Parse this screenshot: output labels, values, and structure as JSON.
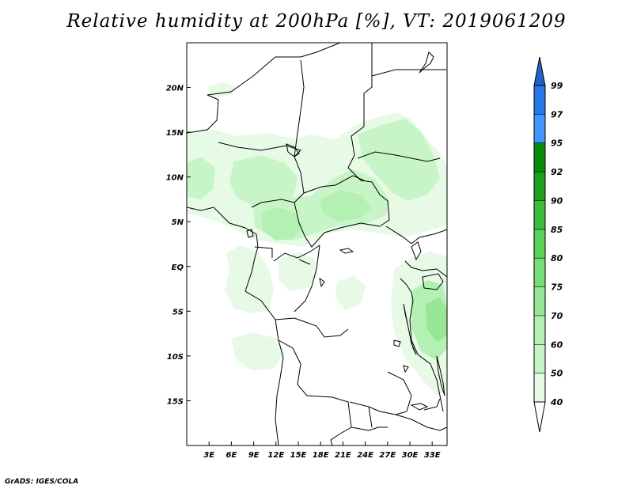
{
  "title": "Relative humidity at 200hPa [%], VT: 2019061209",
  "credit": "GrADS: IGES/COLA",
  "map": {
    "lon_range": [
      0,
      35
    ],
    "lat_range": [
      -20,
      25
    ],
    "lon_ticks": [
      {
        "value": 3,
        "label": "3E"
      },
      {
        "value": 6,
        "label": "6E"
      },
      {
        "value": 9,
        "label": "9E"
      },
      {
        "value": 12,
        "label": "12E"
      },
      {
        "value": 15,
        "label": "15E"
      },
      {
        "value": 18,
        "label": "18E"
      },
      {
        "value": 21,
        "label": "21E"
      },
      {
        "value": 24,
        "label": "24E"
      },
      {
        "value": 27,
        "label": "27E"
      },
      {
        "value": 30,
        "label": "30E"
      },
      {
        "value": 33,
        "label": "33E"
      }
    ],
    "lat_ticks": [
      {
        "value": 20,
        "label": "20N"
      },
      {
        "value": 15,
        "label": "15N"
      },
      {
        "value": 10,
        "label": "10N"
      },
      {
        "value": 5,
        "label": "5N"
      },
      {
        "value": 0,
        "label": "EQ"
      },
      {
        "value": -5,
        "label": "5S"
      },
      {
        "value": -10,
        "label": "10S"
      },
      {
        "value": -15,
        "label": "15S"
      }
    ]
  },
  "colorbar": {
    "levels": [
      "40",
      "50",
      "60",
      "70",
      "75",
      "80",
      "85",
      "90",
      "92",
      "95",
      "97",
      "99"
    ],
    "colors": [
      "#ffffff",
      "#e6fae6",
      "#c8f5c8",
      "#b4f0b4",
      "#96e696",
      "#78dc78",
      "#5ad25a",
      "#3cbe3c",
      "#1ea01e",
      "#0a8c0a",
      "#4196ff",
      "#2878e6",
      "#1e64c8"
    ]
  },
  "shading": {
    "colors": {
      "light": "#e6fae6",
      "mid": "#c8f5c8",
      "strong": "#b4f0b4",
      "deep": "#96e696"
    }
  }
}
